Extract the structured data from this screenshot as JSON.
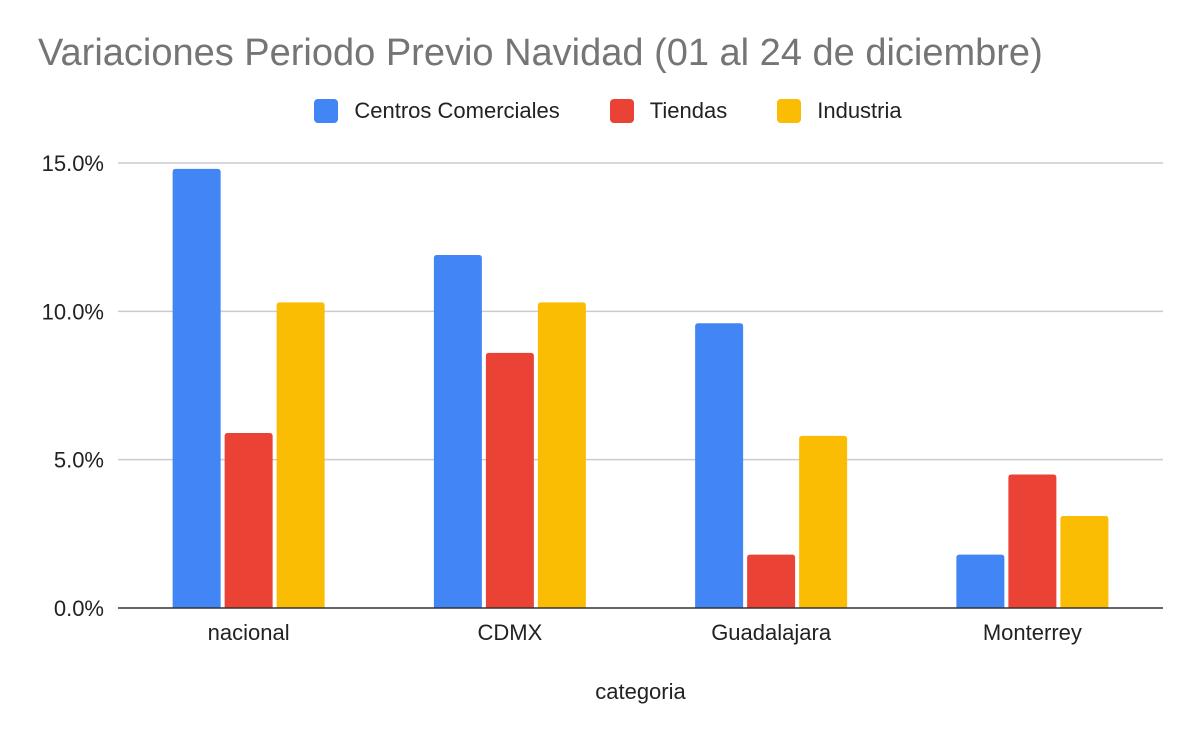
{
  "chart_data": {
    "type": "bar",
    "title": "Variaciones Periodo Previo Navidad (01 al 24 de diciembre)",
    "xlabel": "categoria",
    "ylabel": "",
    "categories": [
      "nacional",
      "CDMX",
      "Guadalajara",
      "Monterrey"
    ],
    "series": [
      {
        "name": "Centros Comerciales",
        "color": "#4285F4",
        "values": [
          14.8,
          11.9,
          9.6,
          1.8
        ]
      },
      {
        "name": "Tiendas",
        "color": "#EA4335",
        "values": [
          5.9,
          8.6,
          1.8,
          4.5
        ]
      },
      {
        "name": "Industria",
        "color": "#FBBC04",
        "values": [
          10.3,
          10.3,
          5.8,
          3.1
        ]
      }
    ],
    "ylim": [
      0,
      15
    ],
    "yticks": [
      0,
      5,
      10,
      15
    ],
    "ytick_labels": [
      "0.0%",
      "5.0%",
      "10.0%",
      "15.0%"
    ],
    "grid": true,
    "legend_position": "top-center"
  }
}
